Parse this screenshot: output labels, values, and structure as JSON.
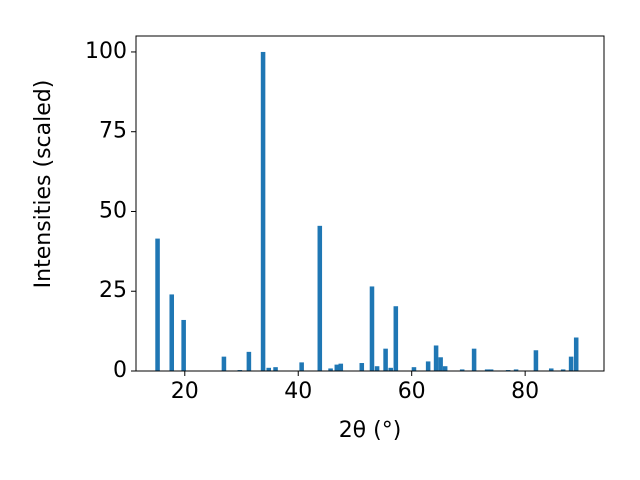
{
  "chart_data": {
    "type": "bar",
    "x_label": "2θ (°)",
    "y_label": "Intensities (scaled)",
    "color": "#1f77b4",
    "x": [
      15.2,
      17.7,
      19.8,
      26.9,
      29.7,
      31.3,
      33.8,
      34.8,
      36.0,
      40.6,
      43.8,
      45.7,
      46.8,
      47.5,
      51.2,
      53.0,
      53.9,
      55.4,
      56.3,
      57.2,
      60.4,
      62.9,
      64.3,
      65.1,
      65.9,
      68.9,
      71.0,
      73.3,
      74.0,
      77.0,
      78.4,
      81.9,
      84.6,
      86.7,
      88.1,
      89.0
    ],
    "values": [
      41.5,
      24,
      16,
      4.5,
      0.3,
      6,
      100,
      1,
      1.2,
      2.7,
      45.5,
      0.8,
      2,
      2.3,
      2.5,
      26.5,
      1.5,
      7,
      1,
      20.3,
      1.2,
      3,
      8,
      4.3,
      1.5,
      0.5,
      7,
      0.5,
      0.5,
      0.3,
      0.5,
      6.5,
      0.8,
      0.5,
      4.5,
      10.5
    ],
    "xlim": [
      11.4,
      93.9
    ],
    "ylim": [
      0,
      105
    ],
    "xticks": [
      20,
      40,
      60,
      80
    ],
    "yticks": [
      0,
      25,
      50,
      75,
      100
    ]
  }
}
